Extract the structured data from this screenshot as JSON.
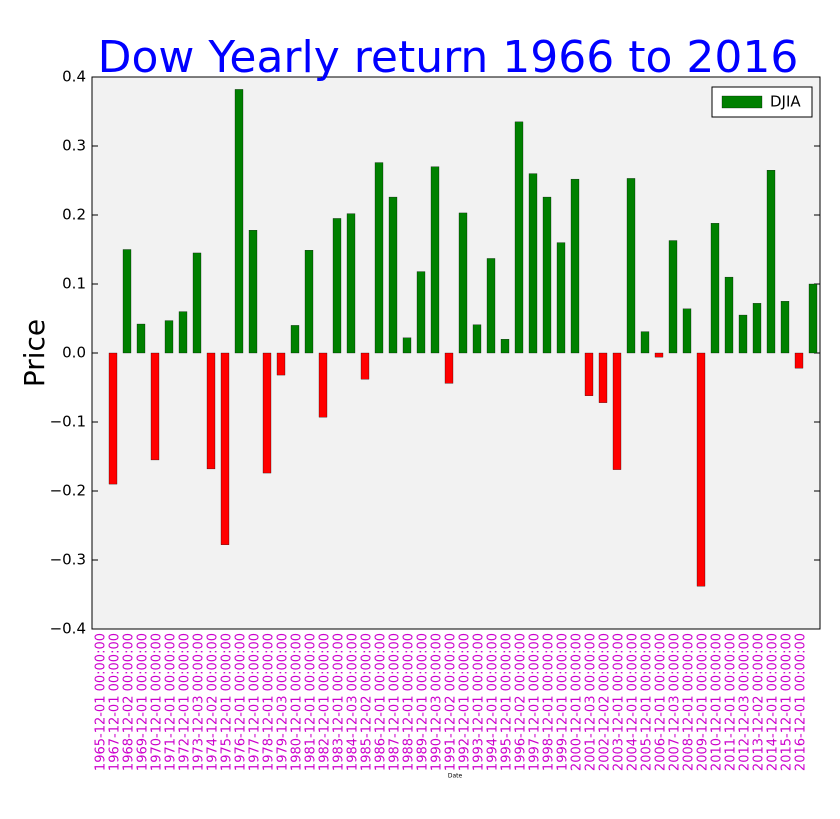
{
  "chart_data": {
    "type": "bar",
    "title": "Dow Yearly return 1966 to 2016",
    "xlabel": "Date",
    "ylabel": "Price",
    "legend": "upper right",
    "categories": [
      "1965-12-01 00:00:00",
      "1967-12-01 00:00:00",
      "1968-12-02 00:00:00",
      "1969-12-01 00:00:00",
      "1970-12-01 00:00:00",
      "1971-12-01 00:00:00",
      "1972-12-01 00:00:00",
      "1973-12-03 00:00:00",
      "1974-12-02 00:00:00",
      "1975-12-01 00:00:00",
      "1976-12-01 00:00:00",
      "1977-12-01 00:00:00",
      "1978-12-01 00:00:00",
      "1979-12-03 00:00:00",
      "1980-12-01 00:00:00",
      "1981-12-01 00:00:00",
      "1982-12-01 00:00:00",
      "1983-12-01 00:00:00",
      "1984-12-03 00:00:00",
      "1985-12-02 00:00:00",
      "1986-12-01 00:00:00",
      "1987-12-01 00:00:00",
      "1988-12-01 00:00:00",
      "1989-12-01 00:00:00",
      "1990-12-03 00:00:00",
      "1991-12-02 00:00:00",
      "1992-12-01 00:00:00",
      "1993-12-01 00:00:00",
      "1994-12-01 00:00:00",
      "1995-12-01 00:00:00",
      "1996-12-02 00:00:00",
      "1997-12-01 00:00:00",
      "1998-12-01 00:00:00",
      "1999-12-01 00:00:00",
      "2000-12-01 00:00:00",
      "2001-12-03 00:00:00",
      "2002-12-02 00:00:00",
      "2003-12-01 00:00:00",
      "2004-12-01 00:00:00",
      "2005-12-01 00:00:00",
      "2006-12-01 00:00:00",
      "2007-12-03 00:00:00",
      "2008-12-01 00:00:00",
      "2009-12-01 00:00:00",
      "2010-12-01 00:00:00",
      "2011-12-01 00:00:00",
      "2012-12-03 00:00:00",
      "2013-12-02 00:00:00",
      "2014-12-01 00:00:00",
      "2015-12-01 00:00:00",
      "2016-12-01 00:00:00"
    ],
    "series": [
      {
        "name": "DJIA",
        "color": "#008000",
        "negative_color": "#ff0000",
        "values": [
          -0.19,
          0.15,
          0.042,
          -0.155,
          0.047,
          0.06,
          0.145,
          -0.168,
          -0.278,
          0.382,
          0.178,
          -0.174,
          -0.032,
          0.04,
          0.149,
          -0.093,
          0.195,
          0.202,
          -0.038,
          0.276,
          0.226,
          0.022,
          0.118,
          0.27,
          -0.044,
          0.203,
          0.041,
          0.137,
          0.02,
          0.335,
          0.26,
          0.226,
          0.16,
          0.252,
          -0.062,
          -0.072,
          -0.169,
          0.253,
          0.031,
          -0.006,
          0.163,
          0.064,
          -0.338,
          0.188,
          0.11,
          0.055,
          0.072,
          0.265,
          0.075,
          -0.022,
          0.1
        ]
      }
    ],
    "ylim": [
      -0.4,
      0.4
    ],
    "yticks": [
      {
        "value": -0.4,
        "label": "−0.4"
      },
      {
        "value": -0.3,
        "label": "−0.3"
      },
      {
        "value": -0.2,
        "label": "−0.2"
      },
      {
        "value": -0.1,
        "label": "−0.1"
      },
      {
        "value": 0,
        "label": "0.0"
      },
      0.1,
      0.2,
      0.3,
      0.4
    ]
  }
}
